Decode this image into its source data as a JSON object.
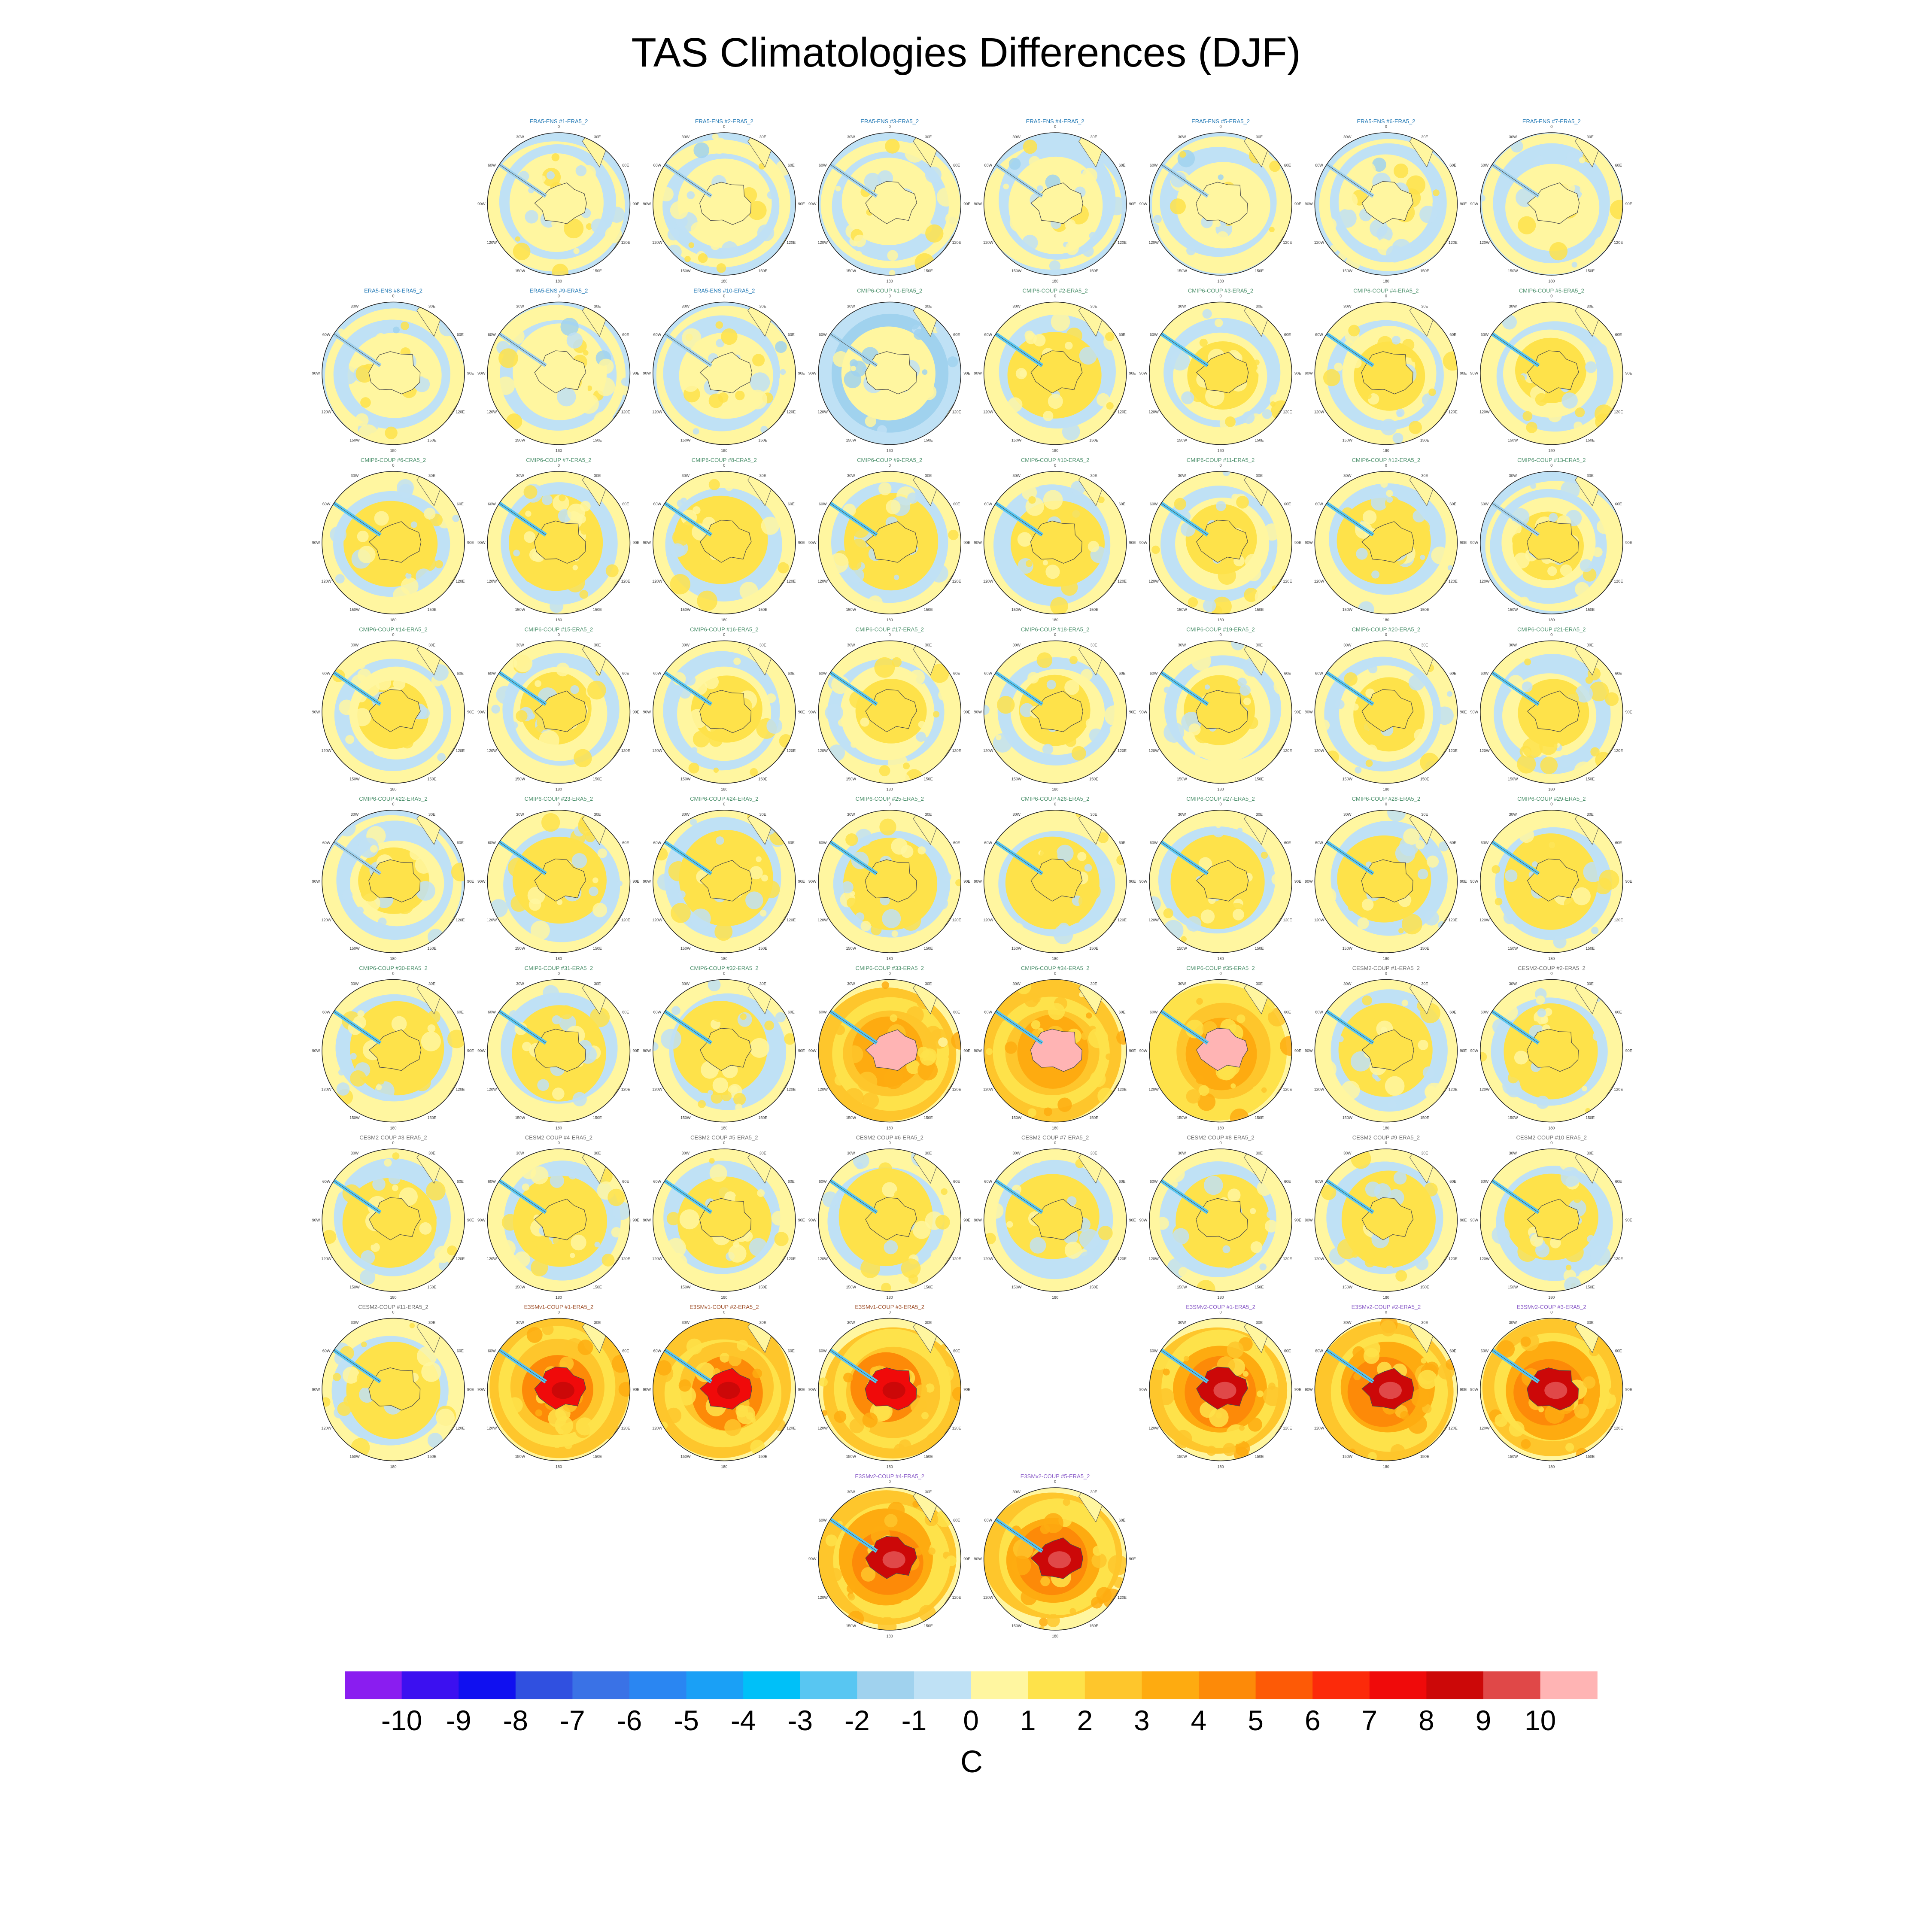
{
  "chart_data": {
    "type": "heatmap",
    "title": "TAS Climatologies Differences (DJF)",
    "projection": "south-polar-stereographic",
    "longitude_labels": [
      "0",
      "30E",
      "60E",
      "90E",
      "120E",
      "150E",
      "180",
      "150W",
      "120W",
      "90W",
      "60W",
      "30W"
    ],
    "colorbar": {
      "unit": "C",
      "tick_labels": [
        "-10",
        "-9",
        "-8",
        "-7",
        "-6",
        "-5",
        "-4",
        "-3",
        "-2",
        "-1",
        "0",
        "1",
        "2",
        "3",
        "4",
        "5",
        "6",
        "7",
        "8",
        "9",
        "10"
      ],
      "colors": [
        "#8a1df0",
        "#3c10f0",
        "#1010f0",
        "#3050e0",
        "#3a72e6",
        "#2a86f2",
        "#1aa0f6",
        "#00c0f8",
        "#58c6f2",
        "#a0d2ee",
        "#bfe1f5",
        "#fff6a0",
        "#fee24a",
        "#fec62c",
        "#feab10",
        "#fd8a08",
        "#fd5a06",
        "#fc2a0a",
        "#f00a0a",
        "#cc0808",
        "#e04848",
        "#ffb4b4"
      ]
    },
    "panels": [
      {
        "row": 0,
        "col": 1,
        "title": "ERA5-ENS   #1-ERA5_2",
        "title_color": "#1f77b4",
        "anomaly": 0.1,
        "bias": 0.2
      },
      {
        "row": 0,
        "col": 2,
        "title": "ERA5-ENS   #2-ERA5_2",
        "title_color": "#1f77b4",
        "anomaly": 0.1,
        "bias": 0.2
      },
      {
        "row": 0,
        "col": 3,
        "title": "ERA5-ENS   #3-ERA5_2",
        "title_color": "#1f77b4",
        "anomaly": 0.1,
        "bias": 0.2
      },
      {
        "row": 0,
        "col": 4,
        "title": "ERA5-ENS   #4-ERA5_2",
        "title_color": "#1f77b4",
        "anomaly": 0.1,
        "bias": 0.2
      },
      {
        "row": 0,
        "col": 5,
        "title": "ERA5-ENS   #5-ERA5_2",
        "title_color": "#1f77b4",
        "anomaly": 0.1,
        "bias": 0.2
      },
      {
        "row": 0,
        "col": 6,
        "title": "ERA5-ENS   #6-ERA5_2",
        "title_color": "#1f77b4",
        "anomaly": 0.1,
        "bias": 0.2
      },
      {
        "row": 0,
        "col": 7,
        "title": "ERA5-ENS   #7-ERA5_2",
        "title_color": "#1f77b4",
        "anomaly": 0.1,
        "bias": 0.2
      },
      {
        "row": 1,
        "col": 0,
        "title": "ERA5-ENS   #8-ERA5_2",
        "title_color": "#1f77b4",
        "anomaly": 0.1,
        "bias": 0.2
      },
      {
        "row": 1,
        "col": 1,
        "title": "ERA5-ENS   #9-ERA5_2",
        "title_color": "#1f77b4",
        "anomaly": 0.1,
        "bias": 0.2
      },
      {
        "row": 1,
        "col": 2,
        "title": "ERA5-ENS   #10-ERA5_2",
        "title_color": "#1f77b4",
        "anomaly": 0.1,
        "bias": 0.2
      },
      {
        "row": 1,
        "col": 3,
        "title": "CMIP6-COUP  #1-ERA5_2",
        "title_color": "#4a8f6a",
        "anomaly": 0.8,
        "bias": -0.3
      },
      {
        "row": 1,
        "col": 4,
        "title": "CMIP6-COUP  #2-ERA5_2",
        "title_color": "#4a8f6a",
        "anomaly": 1.2,
        "bias": 0.5
      },
      {
        "row": 1,
        "col": 5,
        "title": "CMIP6-COUP  #3-ERA5_2",
        "title_color": "#4a8f6a",
        "anomaly": 1.2,
        "bias": 0.4
      },
      {
        "row": 1,
        "col": 6,
        "title": "CMIP6-COUP  #4-ERA5_2",
        "title_color": "#4a8f6a",
        "anomaly": 1.2,
        "bias": 0.4
      },
      {
        "row": 1,
        "col": 7,
        "title": "CMIP6-COUP  #5-ERA5_2",
        "title_color": "#4a8f6a",
        "anomaly": 1.2,
        "bias": 0.4
      },
      {
        "row": 2,
        "col": 0,
        "title": "CMIP6-COUP  #6-ERA5_2",
        "title_color": "#4a8f6a",
        "anomaly": 1.3,
        "bias": 0.6
      },
      {
        "row": 2,
        "col": 1,
        "title": "CMIP6-COUP  #7-ERA5_2",
        "title_color": "#4a8f6a",
        "anomaly": 1.3,
        "bias": 0.6
      },
      {
        "row": 2,
        "col": 2,
        "title": "CMIP6-COUP  #8-ERA5_2",
        "title_color": "#4a8f6a",
        "anomaly": 1.3,
        "bias": 0.6
      },
      {
        "row": 2,
        "col": 3,
        "title": "CMIP6-COUP  #9-ERA5_2",
        "title_color": "#4a8f6a",
        "anomaly": 1.3,
        "bias": 0.6
      },
      {
        "row": 2,
        "col": 4,
        "title": "CMIP6-COUP  #10-ERA5_2",
        "title_color": "#4a8f6a",
        "anomaly": 1.3,
        "bias": 0.6
      },
      {
        "row": 2,
        "col": 5,
        "title": "CMIP6-COUP  #11-ERA5_2",
        "title_color": "#4a8f6a",
        "anomaly": 1.3,
        "bias": 0.4
      },
      {
        "row": 2,
        "col": 6,
        "title": "CMIP6-COUP  #12-ERA5_2",
        "title_color": "#4a8f6a",
        "anomaly": 1.3,
        "bias": 0.5
      },
      {
        "row": 2,
        "col": 7,
        "title": "CMIP6-COUP  #13-ERA5_2",
        "title_color": "#4a8f6a",
        "anomaly": 1.3,
        "bias": 0.3
      },
      {
        "row": 3,
        "col": 0,
        "title": "CMIP6-COUP  #14-ERA5_2",
        "title_color": "#4a8f6a",
        "anomaly": 1.3,
        "bias": 0.4
      },
      {
        "row": 3,
        "col": 1,
        "title": "CMIP6-COUP  #15-ERA5_2",
        "title_color": "#4a8f6a",
        "anomaly": 1.3,
        "bias": 0.4
      },
      {
        "row": 3,
        "col": 2,
        "title": "CMIP6-COUP  #16-ERA5_2",
        "title_color": "#4a8f6a",
        "anomaly": 1.3,
        "bias": 0.4
      },
      {
        "row": 3,
        "col": 3,
        "title": "CMIP6-COUP  #17-ERA5_2",
        "title_color": "#4a8f6a",
        "anomaly": 1.3,
        "bias": 0.4
      },
      {
        "row": 3,
        "col": 4,
        "title": "CMIP6-COUP  #18-ERA5_2",
        "title_color": "#4a8f6a",
        "anomaly": 1.3,
        "bias": 0.4
      },
      {
        "row": 3,
        "col": 5,
        "title": "CMIP6-COUP  #19-ERA5_2",
        "title_color": "#4a8f6a",
        "anomaly": 1.3,
        "bias": 0.4
      },
      {
        "row": 3,
        "col": 6,
        "title": "CMIP6-COUP  #20-ERA5_2",
        "title_color": "#4a8f6a",
        "anomaly": 1.3,
        "bias": 0.4
      },
      {
        "row": 3,
        "col": 7,
        "title": "CMIP6-COUP  #21-ERA5_2",
        "title_color": "#4a8f6a",
        "anomaly": 1.3,
        "bias": 0.4
      },
      {
        "row": 4,
        "col": 0,
        "title": "CMIP6-COUP  #22-ERA5_2",
        "title_color": "#4a8f6a",
        "anomaly": 1.2,
        "bias": 0.3
      },
      {
        "row": 4,
        "col": 1,
        "title": "CMIP6-COUP  #23-ERA5_2",
        "title_color": "#4a8f6a",
        "anomaly": 1.2,
        "bias": 0.5
      },
      {
        "row": 4,
        "col": 2,
        "title": "CMIP6-COUP  #24-ERA5_2",
        "title_color": "#4a8f6a",
        "anomaly": 1.2,
        "bias": 0.5
      },
      {
        "row": 4,
        "col": 3,
        "title": "CMIP6-COUP  #25-ERA5_2",
        "title_color": "#4a8f6a",
        "anomaly": 1.2,
        "bias": 0.5
      },
      {
        "row": 4,
        "col": 4,
        "title": "CMIP6-COUP  #26-ERA5_2",
        "title_color": "#4a8f6a",
        "anomaly": 1.2,
        "bias": 0.5
      },
      {
        "row": 4,
        "col": 5,
        "title": "CMIP6-COUP  #27-ERA5_2",
        "title_color": "#4a8f6a",
        "anomaly": 1.2,
        "bias": 0.5
      },
      {
        "row": 4,
        "col": 6,
        "title": "CMIP6-COUP  #28-ERA5_2",
        "title_color": "#4a8f6a",
        "anomaly": 1.2,
        "bias": 0.5
      },
      {
        "row": 4,
        "col": 7,
        "title": "CMIP6-COUP  #29-ERA5_2",
        "title_color": "#4a8f6a",
        "anomaly": 1.2,
        "bias": 0.5
      },
      {
        "row": 5,
        "col": 0,
        "title": "CMIP6-COUP  #30-ERA5_2",
        "title_color": "#4a8f6a",
        "anomaly": 1.3,
        "bias": 0.6
      },
      {
        "row": 5,
        "col": 1,
        "title": "CMIP6-COUP  #31-ERA5_2",
        "title_color": "#4a8f6a",
        "anomaly": 1.3,
        "bias": 0.6
      },
      {
        "row": 5,
        "col": 2,
        "title": "CMIP6-COUP  #32-ERA5_2",
        "title_color": "#4a8f6a",
        "anomaly": 1.3,
        "bias": 0.6
      },
      {
        "row": 5,
        "col": 3,
        "title": "CMIP6-COUP  #33-ERA5_2",
        "title_color": "#4a8f6a",
        "anomaly": 10.5,
        "bias": 2.2
      },
      {
        "row": 5,
        "col": 4,
        "title": "CMIP6-COUP  #34-ERA5_2",
        "title_color": "#4a8f6a",
        "anomaly": 10.5,
        "bias": 2.2
      },
      {
        "row": 5,
        "col": 5,
        "title": "CMIP6-COUP  #35-ERA5_2",
        "title_color": "#4a8f6a",
        "anomaly": 10.5,
        "bias": 2.0
      },
      {
        "row": 5,
        "col": 6,
        "title": "CESM2-COUP  #1-ERA5_2",
        "title_color": "#6e6e6e",
        "anomaly": 1.3,
        "bias": 0.5
      },
      {
        "row": 5,
        "col": 7,
        "title": "CESM2-COUP  #2-ERA5_2",
        "title_color": "#6e6e6e",
        "anomaly": 1.3,
        "bias": 0.5
      },
      {
        "row": 6,
        "col": 0,
        "title": "CESM2-COUP  #3-ERA5_2",
        "title_color": "#6e6e6e",
        "anomaly": 1.3,
        "bias": 0.5
      },
      {
        "row": 6,
        "col": 1,
        "title": "CESM2-COUP  #4-ERA5_2",
        "title_color": "#6e6e6e",
        "anomaly": 1.3,
        "bias": 0.6
      },
      {
        "row": 6,
        "col": 2,
        "title": "CESM2-COUP  #5-ERA5_2",
        "title_color": "#6e6e6e",
        "anomaly": 1.3,
        "bias": 0.5
      },
      {
        "row": 6,
        "col": 3,
        "title": "CESM2-COUP  #6-ERA5_2",
        "title_color": "#6e6e6e",
        "anomaly": 1.3,
        "bias": 0.6
      },
      {
        "row": 6,
        "col": 4,
        "title": "CESM2-COUP  #7-ERA5_2",
        "title_color": "#6e6e6e",
        "anomaly": 1.3,
        "bias": 0.5
      },
      {
        "row": 6,
        "col": 5,
        "title": "CESM2-COUP  #8-ERA5_2",
        "title_color": "#6e6e6e",
        "anomaly": 1.3,
        "bias": 0.5
      },
      {
        "row": 6,
        "col": 6,
        "title": "CESM2-COUP  #9-ERA5_2",
        "title_color": "#6e6e6e",
        "anomaly": 1.3,
        "bias": 0.6
      },
      {
        "row": 6,
        "col": 7,
        "title": "CESM2-COUP  #10-ERA5_2",
        "title_color": "#6e6e6e",
        "anomaly": 1.3,
        "bias": 0.6
      },
      {
        "row": 7,
        "col": 0,
        "title": "CESM2-COUP  #11-ERA5_2",
        "title_color": "#6e6e6e",
        "anomaly": 1.3,
        "bias": 0.6
      },
      {
        "row": 7,
        "col": 1,
        "title": "E3SMv1-COUP #1-ERA5_2",
        "title_color": "#a0522d",
        "anomaly": 7.5,
        "bias": 2.3
      },
      {
        "row": 7,
        "col": 2,
        "title": "E3SMv1-COUP #2-ERA5_2",
        "title_color": "#a0522d",
        "anomaly": 7.5,
        "bias": 2.3
      },
      {
        "row": 7,
        "col": 3,
        "title": "E3SMv1-COUP #3-ERA5_2",
        "title_color": "#a0522d",
        "anomaly": 7.5,
        "bias": 2.3
      },
      {
        "row": 7,
        "col": 5,
        "title": "E3SMv2-COUP #1-ERA5_2",
        "title_color": "#8a5cc8",
        "anomaly": 8.0,
        "bias": 2.6
      },
      {
        "row": 7,
        "col": 6,
        "title": "E3SMv2-COUP #2-ERA5_2",
        "title_color": "#8a5cc8",
        "anomaly": 8.0,
        "bias": 2.6
      },
      {
        "row": 7,
        "col": 7,
        "title": "E3SMv2-COUP #3-ERA5_2",
        "title_color": "#8a5cc8",
        "anomaly": 8.0,
        "bias": 2.6
      },
      {
        "row": 8,
        "col": 3,
        "title": "E3SMv2-COUP #4-ERA5_2",
        "title_color": "#8a5cc8",
        "anomaly": 8.0,
        "bias": 2.6
      },
      {
        "row": 8,
        "col": 4,
        "title": "E3SMv2-COUP #5-ERA5_2",
        "title_color": "#8a5cc8",
        "anomaly": 8.0,
        "bias": 2.6
      }
    ]
  }
}
